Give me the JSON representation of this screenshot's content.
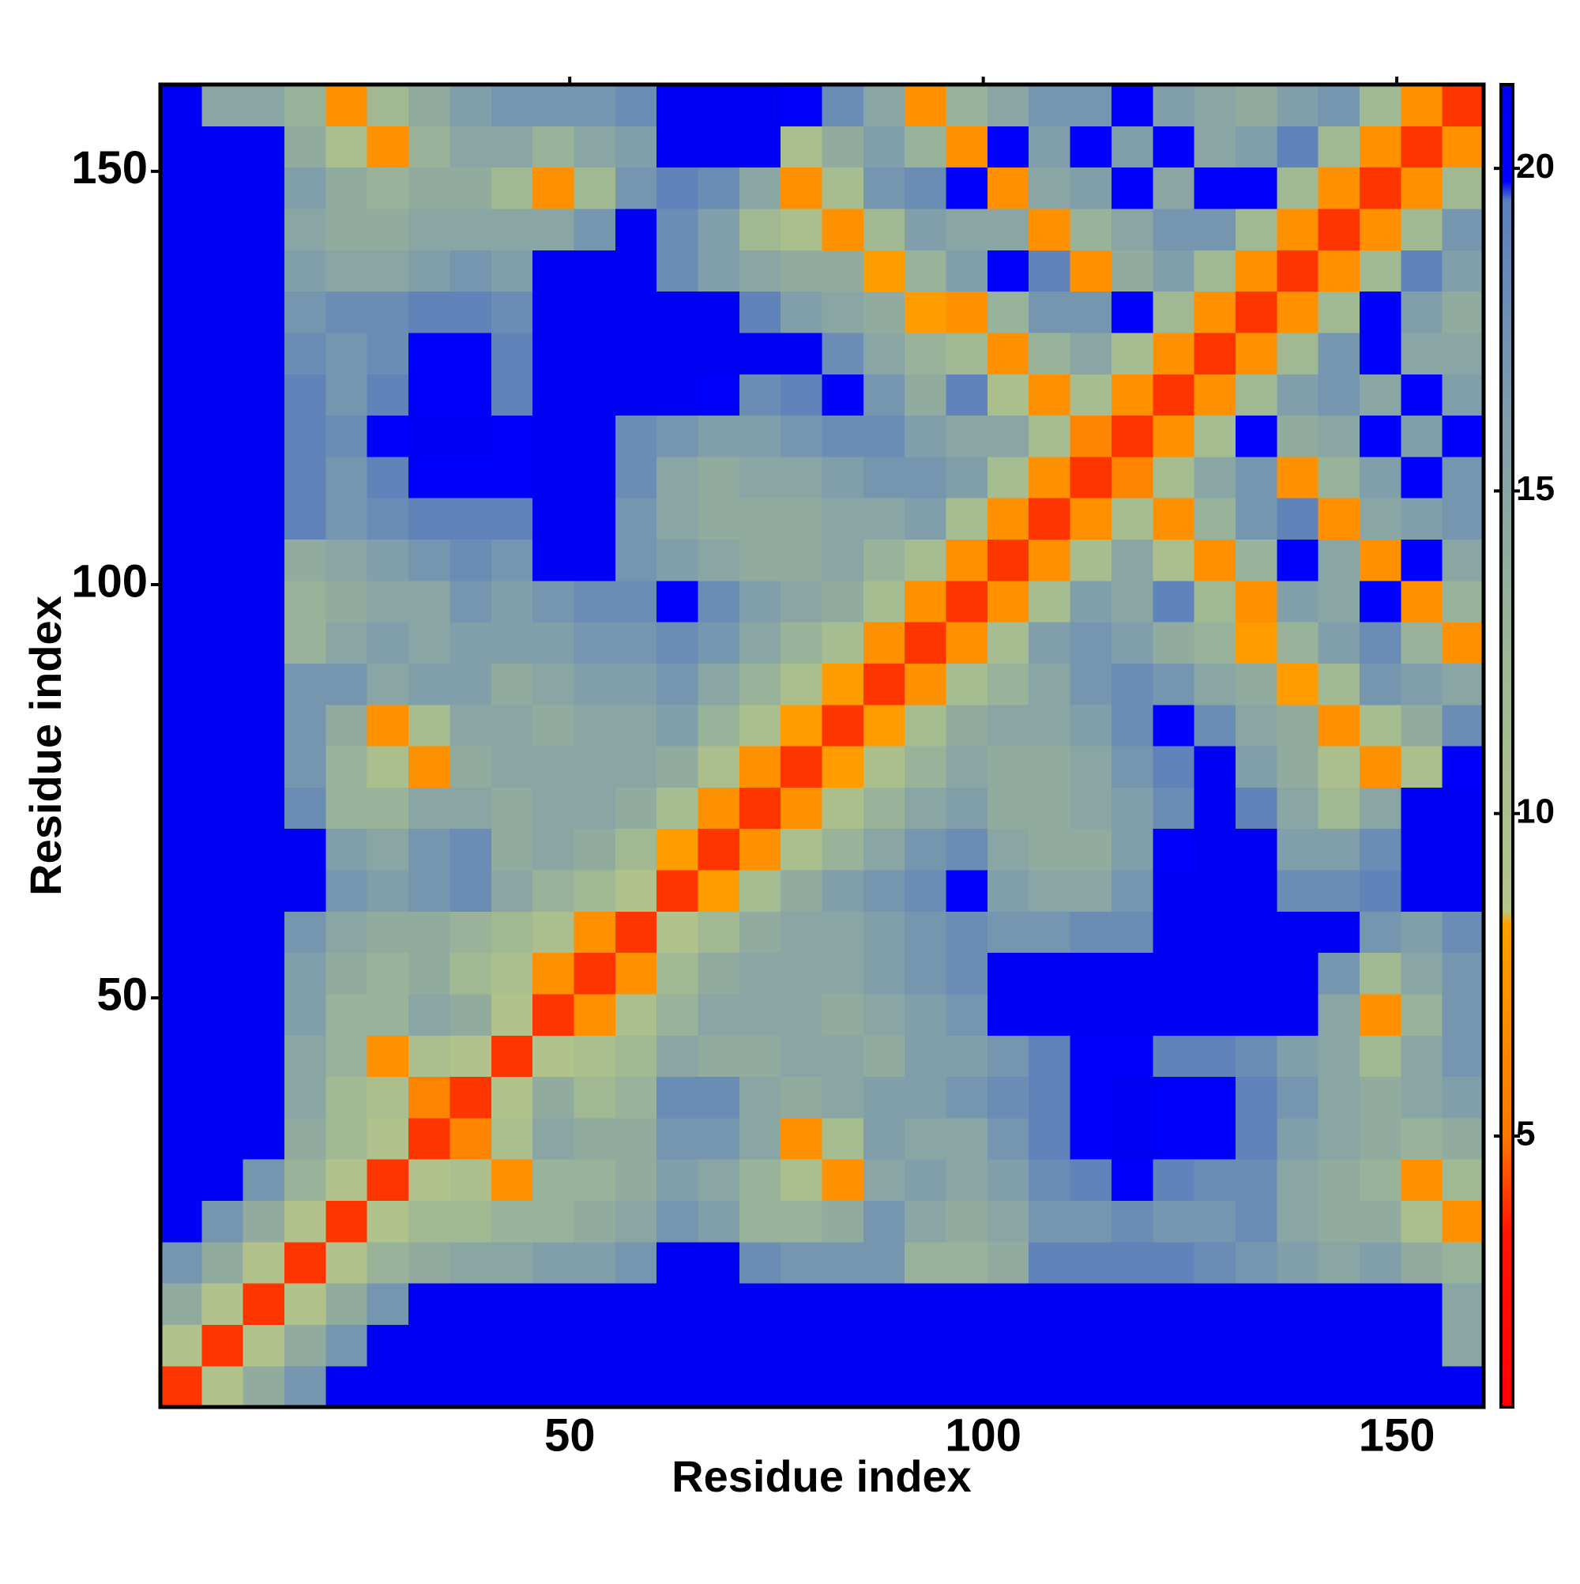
{
  "chart_data": {
    "type": "heatmap",
    "x_label": "Residue index",
    "y_label": "Residue index",
    "symmetric": true,
    "bins": [
      0.5,
      5.5,
      10.5,
      15.5,
      20.5,
      25.5,
      30.5,
      35.5,
      40.5,
      45.5,
      50.5,
      55.5,
      60.5,
      65.5,
      70.5,
      75.5,
      80.5,
      85.5,
      90.5,
      95.5,
      100.5,
      105.5,
      110.5,
      115.5,
      120.5,
      125.5,
      130.5,
      135.5,
      140.5,
      145.5,
      150.5,
      155.5,
      160.5
    ],
    "values": [
      [
        4,
        9,
        14,
        17,
        21,
        21,
        21,
        21,
        21,
        21,
        21,
        21,
        21,
        21,
        21,
        21,
        21,
        21,
        21,
        21,
        21,
        21,
        21,
        21,
        21,
        21,
        21,
        21,
        21,
        21,
        21,
        21
      ],
      [
        4,
        9,
        14,
        17,
        21,
        21,
        21,
        21,
        21,
        21,
        21,
        21,
        21,
        21,
        21,
        21,
        21,
        21,
        21,
        21,
        21,
        21,
        21,
        21,
        21,
        21,
        21,
        21,
        21,
        21,
        15
      ],
      [
        4,
        9,
        14,
        17,
        21,
        21,
        21,
        21,
        21,
        21,
        21,
        21,
        21,
        21,
        21,
        21,
        21,
        21,
        21,
        21,
        21,
        21,
        21,
        21,
        21,
        21,
        21,
        21,
        21,
        15
      ],
      [
        4,
        9,
        13,
        14,
        15,
        15,
        16,
        16,
        17,
        21,
        21,
        18,
        17,
        17,
        17,
        13,
        13,
        14,
        19,
        19,
        19,
        19,
        18,
        17,
        16,
        15,
        16,
        14,
        13
      ],
      [
        4,
        9,
        12,
        12,
        13,
        13,
        14,
        15,
        17,
        16,
        13,
        13,
        14,
        17,
        15,
        14,
        15,
        17,
        17,
        18,
        17,
        17,
        18,
        15,
        14,
        14,
        10,
        7
      ],
      [
        4,
        9,
        10,
        7,
        13,
        13,
        14,
        16,
        15,
        13,
        10,
        7,
        15,
        16,
        15,
        16,
        18,
        19,
        20,
        19,
        18,
        18,
        15,
        14,
        13,
        7,
        12
      ],
      [
        4,
        6,
        10,
        15,
        14,
        14,
        17,
        17,
        15,
        7,
        11,
        16,
        15,
        15,
        17,
        19,
        20,
        21,
        20,
        20,
        19,
        16,
        15,
        14,
        13,
        14
      ],
      [
        4,
        9,
        14,
        12,
        13,
        18,
        18,
        15,
        14,
        15,
        16,
        16,
        17,
        18,
        19,
        20,
        21,
        20,
        20,
        19,
        17,
        15,
        14,
        15,
        16
      ],
      [
        4,
        9,
        10,
        12,
        15,
        14,
        14,
        15,
        15,
        14,
        16,
        16,
        17,
        19,
        20,
        20,
        19,
        19,
        18,
        16,
        15,
        12,
        15,
        17
      ],
      [
        4,
        7,
        10,
        13,
        15,
        15,
        15,
        14,
        15,
        16,
        17,
        21,
        21,
        21,
        21,
        21,
        21,
        21,
        21,
        15,
        7,
        13,
        17
      ],
      [
        4,
        7,
        12,
        14,
        15,
        15,
        15,
        16,
        17,
        18,
        21,
        21,
        21,
        21,
        21,
        21,
        21,
        21,
        17,
        12,
        15,
        17
      ],
      [
        4,
        9,
        12,
        14,
        15,
        15,
        16,
        17,
        18,
        17,
        17,
        18,
        18,
        21,
        21,
        21,
        21,
        21,
        17,
        16,
        18
      ],
      [
        4,
        8,
        11,
        14,
        16,
        17,
        18,
        20,
        16,
        15,
        15,
        17,
        21,
        21,
        21,
        18,
        18,
        19,
        21,
        21
      ],
      [
        4,
        7,
        10,
        13,
        15,
        17,
        18,
        15,
        14,
        14,
        16,
        20,
        21,
        21,
        16,
        16,
        18,
        21,
        21
      ],
      [
        4,
        7,
        10,
        13,
        15,
        16,
        14,
        14,
        15,
        16,
        18,
        21,
        19,
        15,
        12,
        15,
        21,
        21
      ],
      [
        4,
        8,
        10,
        13,
        15,
        14,
        14,
        15,
        17,
        19,
        21,
        16,
        14,
        10,
        7,
        10,
        20
      ],
      [
        4,
        8,
        11,
        14,
        15,
        15,
        16,
        18,
        20,
        18,
        15,
        14,
        7,
        11,
        14,
        18
      ],
      [
        4,
        7,
        11,
        13,
        15,
        17,
        18,
        17,
        15,
        14,
        8,
        12,
        17,
        16,
        15
      ],
      [
        4,
        7,
        11,
        16,
        17,
        16,
        14,
        13,
        8,
        13,
        16,
        18,
        13,
        7
      ],
      [
        4,
        7,
        11,
        16,
        15,
        19,
        12,
        7,
        16,
        15,
        20,
        7,
        13
      ],
      [
        4,
        7,
        11,
        15,
        10,
        7,
        13,
        20,
        15,
        7,
        20,
        15
      ],
      [
        4,
        7,
        11,
        7,
        13,
        17,
        19,
        7,
        15,
        16,
        17
      ],
      [
        4,
        6,
        11,
        15,
        17,
        7,
        13,
        16,
        20,
        17
      ],
      [
        4,
        7,
        11,
        20,
        14,
        15,
        20,
        16,
        20
      ],
      [
        4,
        7,
        12,
        16,
        17,
        15,
        20,
        16
      ],
      [
        4,
        7,
        12,
        17,
        20,
        15,
        15
      ],
      [
        4,
        7,
        12,
        20,
        16,
        14
      ],
      [
        4,
        7,
        12,
        19,
        16
      ],
      [
        4,
        7,
        12,
        17
      ],
      [
        4,
        7,
        12
      ],
      [
        4,
        7
      ],
      [
        4
      ]
    ],
    "xlim": [
      0.5,
      160.5
    ],
    "ylim": [
      0.5,
      160.5
    ],
    "xticks": [
      50,
      100,
      150
    ],
    "yticks": [
      50,
      100,
      150
    ],
    "zlim": [
      0.8,
      21.3
    ],
    "zticks": [
      5,
      10,
      15,
      20
    ],
    "colorscale": [
      {
        "value": 0.8,
        "color": "#ff0000"
      },
      {
        "value": 3.5,
        "color": "#ff1400"
      },
      {
        "value": 5,
        "color": "#ff7800"
      },
      {
        "value": 8.3,
        "color": "#ffa000"
      },
      {
        "value": 8.5,
        "color": "#b4c48b"
      },
      {
        "value": 12,
        "color": "#a0b993"
      },
      {
        "value": 16,
        "color": "#819fab"
      },
      {
        "value": 19.5,
        "color": "#5a7fbd"
      },
      {
        "value": 19.8,
        "color": "#0000ff"
      },
      {
        "value": 21.3,
        "color": "#0000f0"
      }
    ]
  }
}
